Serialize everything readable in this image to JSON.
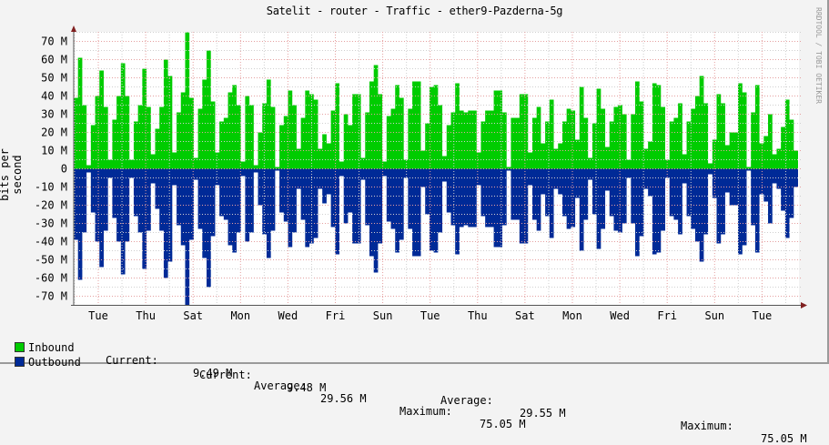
{
  "title": "Satelit - router - Traffic - ether9-Pazderna-5g",
  "watermark": "RRDTOOL / TOBI OETIKER",
  "colors": {
    "inbound": "#00cc00",
    "outbound": "#002a97",
    "background": "#f3f3f3",
    "canvas": "#ffffff",
    "major_grid": "#e5a0a0",
    "minor_grid": "#cccccc",
    "axis": "#802020"
  },
  "chart_data": {
    "type": "area",
    "title": "Satelit - router - Traffic - ether9-Pazderna-5g",
    "xlabel": "",
    "ylabel": "bits per second",
    "ylim": [
      -75,
      75
    ],
    "y_unit": "M",
    "y_ticks": [
      "70 M",
      "60 M",
      "50 M",
      "40 M",
      "30 M",
      "20 M",
      "10 M",
      "0",
      "-10 M",
      "-20 M",
      "-30 M",
      "-40 M",
      "-50 M",
      "-60 M",
      "-70 M"
    ],
    "y_tick_values": [
      70,
      60,
      50,
      40,
      30,
      20,
      10,
      0,
      -10,
      -20,
      -30,
      -40,
      -50,
      -60,
      -70
    ],
    "x_ticks": [
      "Tue",
      "Thu",
      "Sat",
      "Mon",
      "Wed",
      "Fri",
      "Sun",
      "Tue",
      "Thu",
      "Sat",
      "Mon",
      "Wed",
      "Fri",
      "Sun",
      "Tue"
    ],
    "grid": true,
    "legend_position": "bottom",
    "series": [
      {
        "name": "Inbound",
        "color": "#00cc00",
        "direction": "positive",
        "values": [
          39,
          61,
          35,
          2,
          24,
          40,
          54,
          34,
          5,
          27,
          40,
          58,
          40,
          5,
          26,
          35,
          55,
          34,
          8,
          22,
          34,
          60,
          51,
          9,
          31,
          42,
          75,
          39,
          6,
          33,
          49,
          65,
          37,
          9,
          26,
          28,
          42,
          46,
          35,
          4,
          40,
          35,
          2,
          20,
          36,
          49,
          34,
          1,
          24,
          29,
          43,
          35,
          11,
          28,
          43,
          41,
          38,
          11,
          19,
          14,
          32,
          47,
          4,
          30,
          24,
          41,
          41,
          6,
          31,
          48,
          57,
          41,
          4,
          29,
          33,
          46,
          39,
          5,
          33,
          48,
          48,
          10,
          25,
          45,
          46,
          35,
          7,
          24,
          31,
          47,
          32,
          31,
          32,
          32,
          9,
          26,
          32,
          32,
          43,
          43,
          31,
          1,
          28,
          28,
          41,
          41,
          9,
          28,
          34,
          14,
          26,
          38,
          11,
          14,
          26,
          33,
          32,
          16,
          45,
          28,
          6,
          25,
          44,
          33,
          12,
          26,
          34,
          35,
          30,
          5,
          30,
          48,
          37,
          11,
          15,
          47,
          46,
          34,
          5,
          26,
          28,
          36,
          8,
          26,
          33,
          40,
          51,
          36,
          3,
          16,
          41,
          36,
          13,
          20,
          20,
          47,
          42,
          1,
          31,
          46,
          14,
          18,
          30,
          8,
          11,
          23,
          38,
          27,
          10
        ],
        "current": "9.49 M",
        "average": "29.56 M",
        "maximum": "75.05 M"
      },
      {
        "name": "Outbound",
        "color": "#002a97",
        "direction": "negative",
        "values": [
          39,
          61,
          35,
          2,
          24,
          40,
          54,
          34,
          5,
          27,
          40,
          58,
          40,
          5,
          26,
          35,
          55,
          34,
          8,
          22,
          34,
          60,
          51,
          9,
          31,
          42,
          75,
          39,
          6,
          33,
          49,
          65,
          37,
          9,
          26,
          28,
          42,
          46,
          35,
          4,
          40,
          35,
          2,
          20,
          36,
          49,
          34,
          1,
          24,
          29,
          43,
          35,
          11,
          28,
          43,
          41,
          38,
          11,
          19,
          14,
          32,
          47,
          4,
          30,
          24,
          41,
          41,
          6,
          31,
          48,
          57,
          41,
          4,
          29,
          33,
          46,
          39,
          5,
          33,
          48,
          48,
          10,
          25,
          45,
          46,
          35,
          7,
          24,
          31,
          47,
          32,
          31,
          32,
          32,
          9,
          26,
          32,
          32,
          43,
          43,
          31,
          1,
          28,
          28,
          41,
          41,
          9,
          28,
          34,
          14,
          26,
          38,
          11,
          14,
          26,
          33,
          32,
          16,
          45,
          28,
          6,
          25,
          44,
          33,
          12,
          26,
          34,
          35,
          30,
          5,
          30,
          48,
          37,
          11,
          15,
          47,
          46,
          34,
          5,
          26,
          28,
          36,
          8,
          26,
          33,
          40,
          51,
          36,
          3,
          16,
          41,
          36,
          13,
          20,
          20,
          47,
          42,
          1,
          31,
          46,
          14,
          18,
          30,
          8,
          11,
          23,
          38,
          27,
          10
        ],
        "current": "9.48 M",
        "average": "29.55 M",
        "maximum": "75.05 M"
      }
    ]
  },
  "legend": {
    "inbound": {
      "label": "Inbound",
      "current_label": "Current:",
      "current": "9.49 M",
      "average_label": "Average:",
      "average": "29.56 M",
      "maximum_label": "Maximum:",
      "maximum": "75.05 M"
    },
    "outbound": {
      "label": "Outbound",
      "current_label": "Current:",
      "current": "9.48 M",
      "average_label": "Average:",
      "average": "29.55 M",
      "maximum_label": "Maximum:",
      "maximum": "75.05 M"
    }
  }
}
